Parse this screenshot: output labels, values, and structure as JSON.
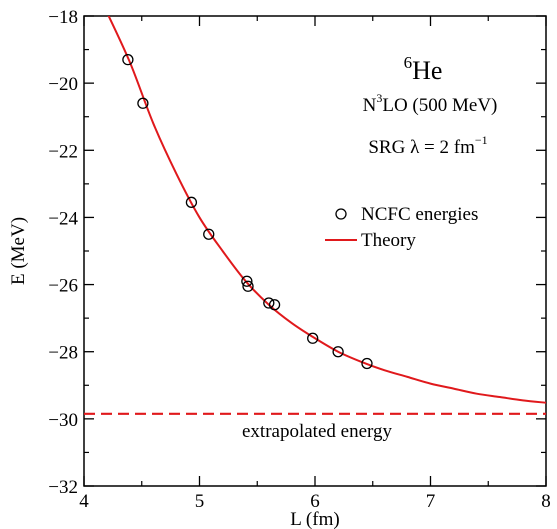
{
  "chart_data": {
    "type": "scatter",
    "xlabel": "L (fm)",
    "ylabel": "E (MeV)",
    "xlim": [
      4,
      8
    ],
    "ylim": [
      -32,
      -18
    ],
    "xticks": [
      4,
      5,
      6,
      7,
      8
    ],
    "yticks": [
      -32,
      -30,
      -28,
      -26,
      -24,
      -22,
      -20,
      -18
    ],
    "x_minor_step": 0.5,
    "y_minor_step": 1,
    "grid": false,
    "legend_position": "right, below middle of upper half",
    "annotations": {
      "nucleus_mass": "6",
      "nucleus_symbol": "He",
      "interaction_prefix": "N",
      "interaction_sup": "3",
      "interaction_suffix": "LO (500 MeV)",
      "srg_text": "SRG λ = 2 fm",
      "srg_sup": "−1",
      "extrapolation_label": "extrapolated energy"
    },
    "series": [
      {
        "name": "NCFC energies",
        "kind": "scatter",
        "marker": "open-circle",
        "color": "#000000",
        "points": [
          {
            "x": 4.38,
            "y": -19.3
          },
          {
            "x": 4.51,
            "y": -20.6
          },
          {
            "x": 4.93,
            "y": -23.55
          },
          {
            "x": 5.08,
            "y": -24.5
          },
          {
            "x": 5.41,
            "y": -25.9
          },
          {
            "x": 5.42,
            "y": -26.05
          },
          {
            "x": 5.6,
            "y": -26.55
          },
          {
            "x": 5.65,
            "y": -26.6
          },
          {
            "x": 5.98,
            "y": -27.6
          },
          {
            "x": 6.2,
            "y": -28.0
          },
          {
            "x": 6.45,
            "y": -28.35
          }
        ]
      },
      {
        "name": "Theory",
        "kind": "line",
        "color": "#e0191c",
        "points": [
          {
            "x": 4.2,
            "y": -17.9
          },
          {
            "x": 4.4,
            "y": -19.4
          },
          {
            "x": 4.6,
            "y": -21.2
          },
          {
            "x": 4.8,
            "y": -22.7
          },
          {
            "x": 5.0,
            "y": -24.0
          },
          {
            "x": 5.2,
            "y": -25.0
          },
          {
            "x": 5.4,
            "y": -25.9
          },
          {
            "x": 5.6,
            "y": -26.6
          },
          {
            "x": 5.8,
            "y": -27.15
          },
          {
            "x": 6.0,
            "y": -27.6
          },
          {
            "x": 6.2,
            "y": -28.0
          },
          {
            "x": 6.4,
            "y": -28.3
          },
          {
            "x": 6.6,
            "y": -28.55
          },
          {
            "x": 6.8,
            "y": -28.75
          },
          {
            "x": 7.0,
            "y": -28.95
          },
          {
            "x": 7.2,
            "y": -29.1
          },
          {
            "x": 7.4,
            "y": -29.25
          },
          {
            "x": 7.6,
            "y": -29.35
          },
          {
            "x": 7.8,
            "y": -29.45
          },
          {
            "x": 8.0,
            "y": -29.52
          }
        ]
      },
      {
        "kind": "hline-dashed",
        "color": "#e0191c",
        "y": -29.85
      }
    ]
  }
}
